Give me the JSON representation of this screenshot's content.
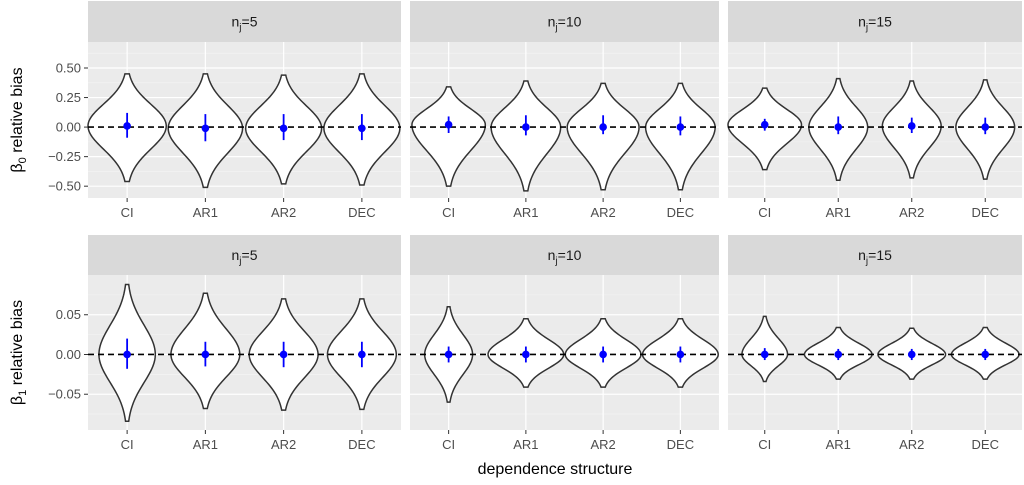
{
  "chart_data": [
    {
      "type": "violin",
      "row": 0,
      "ylabel_symbol": "β",
      "ylabel_sub": "0",
      "ylabel_rest": " relative bias",
      "ylim": [
        -0.6,
        0.72
      ],
      "yticks": [
        0.5,
        0.25,
        0.0,
        -0.25,
        -0.5
      ],
      "ytick_labels": [
        "0.50",
        "0.25",
        "0.00",
        "−0.25",
        "−0.50"
      ],
      "reference_line": 0,
      "categories": [
        "CI",
        "AR1",
        "AR2",
        "DEC"
      ],
      "facets": [
        {
          "strip_main": "n",
          "strip_sub": "j",
          "strip_rest": "=5",
          "violins": [
            {
              "cat": "CI",
              "mean": 0.01,
              "lo": -0.09,
              "hi": 0.12,
              "min": -0.46,
              "max": 0.45,
              "width": 1.0
            },
            {
              "cat": "AR1",
              "mean": -0.01,
              "lo": -0.12,
              "hi": 0.11,
              "min": -0.51,
              "max": 0.45,
              "width": 0.95
            },
            {
              "cat": "AR2",
              "mean": -0.01,
              "lo": -0.11,
              "hi": 0.11,
              "min": -0.48,
              "max": 0.44,
              "width": 0.97
            },
            {
              "cat": "DEC",
              "mean": -0.01,
              "lo": -0.11,
              "hi": 0.11,
              "min": -0.49,
              "max": 0.45,
              "width": 0.97
            }
          ]
        },
        {
          "strip_main": "n",
          "strip_sub": "j",
          "strip_rest": "=10",
          "violins": [
            {
              "cat": "CI",
              "mean": 0.02,
              "lo": -0.05,
              "hi": 0.09,
              "min": -0.5,
              "max": 0.34,
              "width": 0.95
            },
            {
              "cat": "AR1",
              "mean": 0.0,
              "lo": -0.07,
              "hi": 0.1,
              "min": -0.54,
              "max": 0.39,
              "width": 0.9
            },
            {
              "cat": "AR2",
              "mean": 0.0,
              "lo": -0.06,
              "hi": 0.1,
              "min": -0.53,
              "max": 0.37,
              "width": 0.93
            },
            {
              "cat": "DEC",
              "mean": 0.0,
              "lo": -0.07,
              "hi": 0.09,
              "min": -0.53,
              "max": 0.37,
              "width": 0.9
            }
          ]
        },
        {
          "strip_main": "n",
          "strip_sub": "j",
          "strip_rest": "=15",
          "violins": [
            {
              "cat": "CI",
              "mean": 0.02,
              "lo": -0.03,
              "hi": 0.07,
              "min": -0.36,
              "max": 0.33,
              "width": 1.0
            },
            {
              "cat": "AR1",
              "mean": 0.0,
              "lo": -0.06,
              "hi": 0.09,
              "min": -0.45,
              "max": 0.41,
              "width": 0.8
            },
            {
              "cat": "AR2",
              "mean": 0.01,
              "lo": -0.05,
              "hi": 0.08,
              "min": -0.43,
              "max": 0.39,
              "width": 0.8
            },
            {
              "cat": "DEC",
              "mean": 0.0,
              "lo": -0.06,
              "hi": 0.08,
              "min": -0.44,
              "max": 0.4,
              "width": 0.8
            }
          ]
        }
      ]
    },
    {
      "type": "violin",
      "row": 1,
      "ylabel_symbol": "β",
      "ylabel_sub": "1",
      "ylabel_rest": " relative bias",
      "ylim": [
        -0.095,
        0.1
      ],
      "yticks": [
        0.05,
        0.0,
        -0.05
      ],
      "ytick_labels": [
        "0.05",
        "0.00",
        "−0.05"
      ],
      "reference_line": 0,
      "categories": [
        "CI",
        "AR1",
        "AR2",
        "DEC"
      ],
      "facets": [
        {
          "strip_main": "n",
          "strip_sub": "j",
          "strip_rest": "=5",
          "violins": [
            {
              "cat": "CI",
              "mean": 0.0,
              "lo": -0.018,
              "hi": 0.02,
              "min": -0.084,
              "max": 0.088,
              "width": 0.72
            },
            {
              "cat": "AR1",
              "mean": 0.0,
              "lo": -0.015,
              "hi": 0.016,
              "min": -0.068,
              "max": 0.077,
              "width": 0.88
            },
            {
              "cat": "AR2",
              "mean": 0.0,
              "lo": -0.016,
              "hi": 0.016,
              "min": -0.07,
              "max": 0.07,
              "width": 0.88
            },
            {
              "cat": "DEC",
              "mean": 0.0,
              "lo": -0.016,
              "hi": 0.016,
              "min": -0.069,
              "max": 0.07,
              "width": 0.88
            }
          ]
        },
        {
          "strip_main": "n",
          "strip_sub": "j",
          "strip_rest": "=10",
          "violins": [
            {
              "cat": "CI",
              "mean": 0.0,
              "lo": -0.01,
              "hi": 0.01,
              "min": -0.06,
              "max": 0.06,
              "width": 0.62
            },
            {
              "cat": "AR1",
              "mean": 0.0,
              "lo": -0.01,
              "hi": 0.01,
              "min": -0.041,
              "max": 0.045,
              "width": 0.98
            },
            {
              "cat": "AR2",
              "mean": 0.0,
              "lo": -0.01,
              "hi": 0.01,
              "min": -0.041,
              "max": 0.045,
              "width": 0.98
            },
            {
              "cat": "DEC",
              "mean": 0.0,
              "lo": -0.01,
              "hi": 0.01,
              "min": -0.041,
              "max": 0.045,
              "width": 0.98
            }
          ]
        },
        {
          "strip_main": "n",
          "strip_sub": "j",
          "strip_rest": "=15",
          "violins": [
            {
              "cat": "CI",
              "mean": 0.0,
              "lo": -0.007,
              "hi": 0.008,
              "min": -0.034,
              "max": 0.048,
              "width": 0.62
            },
            {
              "cat": "AR1",
              "mean": 0.0,
              "lo": -0.007,
              "hi": 0.007,
              "min": -0.031,
              "max": 0.034,
              "width": 0.92
            },
            {
              "cat": "AR2",
              "mean": 0.0,
              "lo": -0.007,
              "hi": 0.007,
              "min": -0.031,
              "max": 0.033,
              "width": 0.92
            },
            {
              "cat": "DEC",
              "mean": 0.0,
              "lo": -0.007,
              "hi": 0.007,
              "min": -0.031,
              "max": 0.034,
              "width": 0.92
            }
          ]
        }
      ]
    }
  ],
  "xlabel": "dependence structure",
  "colors": {
    "panel_bg": "#ebebeb",
    "strip_bg": "#d9d9d9",
    "grid_major": "#ffffff",
    "grid_minor": "#f5f5f5",
    "violin_fill": "#ffffff",
    "violin_stroke": "#333333",
    "point": "#0000ff",
    "errorbar": "#0000ff",
    "reference_line": "#000000"
  }
}
